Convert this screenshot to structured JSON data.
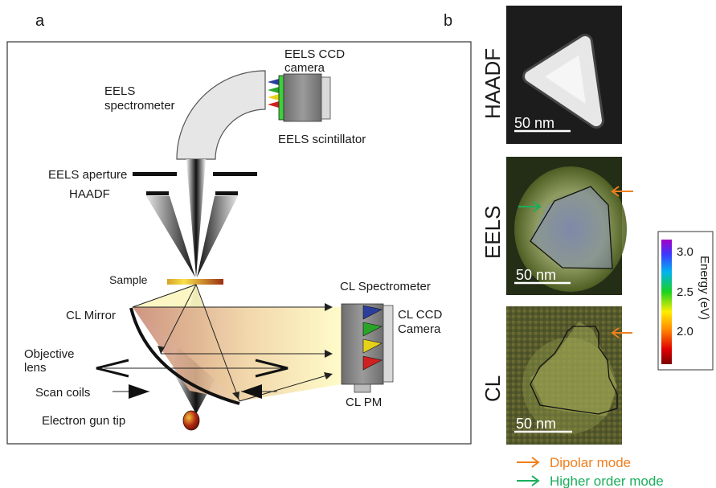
{
  "panel_a": {
    "letter": "a",
    "labels": {
      "eels_ccd_line1": "EELS CCD",
      "eels_ccd_line2": "camera",
      "eels_spec_line1": "EELS",
      "eels_spec_line2": "spectrometer",
      "eels_scintillator": "EELS scintillator",
      "eels_aperture": "EELS aperture",
      "haadf": "HAADF",
      "sample": "Sample",
      "cl_spectrometer": "CL Spectrometer",
      "cl_mirror": "CL Mirror",
      "cl_ccd_line1": "CL CCD",
      "cl_ccd_line2": "Camera",
      "objective_line1": "Objective",
      "objective_line2": "lens",
      "cl_pm": "CL PM",
      "scan_coils": "Scan coils",
      "electron_gun_tip": "Electron gun tip"
    }
  },
  "panel_b": {
    "letter": "b",
    "rows": [
      {
        "label": "HAADF",
        "scale": "50 nm"
      },
      {
        "label": "EELS",
        "scale": "50 nm"
      },
      {
        "label": "CL",
        "scale": "50 nm"
      }
    ],
    "colorbar": {
      "title": "Energy (eV)",
      "ticks": [
        "3.0",
        "2.5",
        "2.0"
      ],
      "tick_values": [
        3.0,
        2.5,
        2.0
      ],
      "range": [
        1.6,
        3.2
      ]
    },
    "legend": [
      {
        "text": "Dipolar mode",
        "color": "#f07f1e"
      },
      {
        "text": "Higher order mode",
        "color": "#1bae5d"
      }
    ]
  }
}
